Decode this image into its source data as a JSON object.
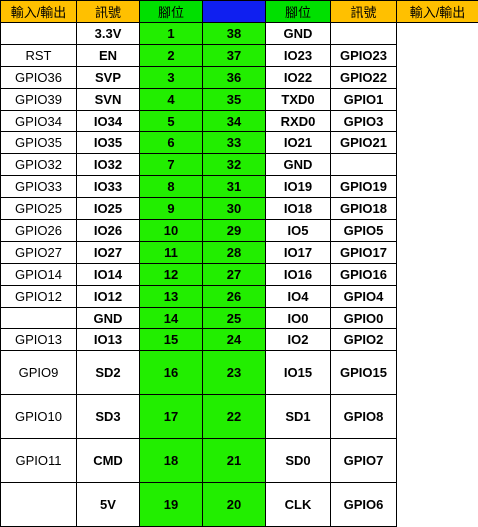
{
  "headers": {
    "io_left": "輸入/輸出",
    "signal_left": "訊號",
    "pin_left": "腳位",
    "pin_right": "腳位",
    "signal_right": "訊號",
    "io_right": "輸入/輸出"
  },
  "rows": [
    {
      "io_left": "",
      "sig_left": "3.3V",
      "pin_left": "1",
      "pin_right": "38",
      "sig_right": "GND",
      "io_right": ""
    },
    {
      "io_left": "RST",
      "sig_left": "EN",
      "pin_left": "2",
      "pin_right": "37",
      "sig_right": "IO23",
      "io_right": "GPIO23"
    },
    {
      "io_left": "GPIO36",
      "sig_left": "SVP",
      "pin_left": "3",
      "pin_right": "36",
      "sig_right": "IO22",
      "io_right": "GPIO22"
    },
    {
      "io_left": "GPIO39",
      "sig_left": "SVN",
      "pin_left": "4",
      "pin_right": "35",
      "sig_right": "TXD0",
      "io_right": "GPIO1"
    },
    {
      "io_left": "GPIO34",
      "sig_left": "IO34",
      "pin_left": "5",
      "pin_right": "34",
      "sig_right": "RXD0",
      "io_right": "GPIO3"
    },
    {
      "io_left": "GPIO35",
      "sig_left": "IO35",
      "pin_left": "6",
      "pin_right": "33",
      "sig_right": "IO21",
      "io_right": "GPIO21"
    },
    {
      "io_left": "GPIO32",
      "sig_left": "IO32",
      "pin_left": "7",
      "pin_right": "32",
      "sig_right": "GND",
      "io_right": ""
    },
    {
      "io_left": "GPIO33",
      "sig_left": "IO33",
      "pin_left": "8",
      "pin_right": "31",
      "sig_right": "IO19",
      "io_right": "GPIO19"
    },
    {
      "io_left": "GPIO25",
      "sig_left": "IO25",
      "pin_left": "9",
      "pin_right": "30",
      "sig_right": "IO18",
      "io_right": "GPIO18"
    },
    {
      "io_left": "GPIO26",
      "sig_left": "IO26",
      "pin_left": "10",
      "pin_right": "29",
      "sig_right": "IO5",
      "io_right": "GPIO5"
    },
    {
      "io_left": "GPIO27",
      "sig_left": "IO27",
      "pin_left": "11",
      "pin_right": "28",
      "sig_right": "IO17",
      "io_right": "GPIO17"
    },
    {
      "io_left": "GPIO14",
      "sig_left": "IO14",
      "pin_left": "12",
      "pin_right": "27",
      "sig_right": "IO16",
      "io_right": "GPIO16"
    },
    {
      "io_left": "GPIO12",
      "sig_left": "IO12",
      "pin_left": "13",
      "pin_right": "26",
      "sig_right": "IO4",
      "io_right": "GPIO4"
    },
    {
      "io_left": "",
      "sig_left": "GND",
      "pin_left": "14",
      "pin_right": "25",
      "sig_right": "IO0",
      "io_right": "GPIO0"
    },
    {
      "io_left": "GPIO13",
      "sig_left": "IO13",
      "pin_left": "15",
      "pin_right": "24",
      "sig_right": "IO2",
      "io_right": "GPIO2"
    },
    {
      "io_left": "GPIO9",
      "sig_left": "SD2",
      "pin_left": "16",
      "pin_right": "23",
      "sig_right": "IO15",
      "io_right": "GPIO15"
    },
    {
      "io_left": "GPIO10",
      "sig_left": "SD3",
      "pin_left": "17",
      "pin_right": "22",
      "sig_right": "SD1",
      "io_right": "GPIO8"
    },
    {
      "io_left": "GPIO11",
      "sig_left": "CMD",
      "pin_left": "18",
      "pin_right": "21",
      "sig_right": "SD0",
      "io_right": "GPIO7"
    },
    {
      "io_left": "",
      "sig_left": "5V",
      "pin_left": "19",
      "pin_right": "20",
      "sig_right": "CLK",
      "io_right": "GPIO6"
    }
  ],
  "colors": {
    "header_bg": "#ffc000",
    "pin_header_bg": "#00e000",
    "pin_bg": "#22ee00",
    "center_strip": "#0f1ff0"
  }
}
